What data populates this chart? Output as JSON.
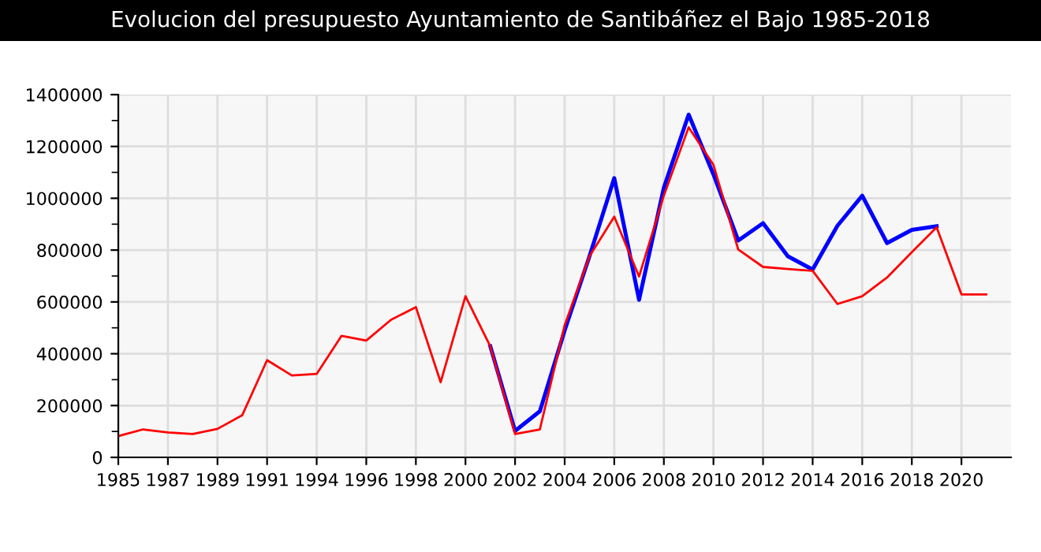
{
  "chart_data": {
    "type": "line",
    "title": "Evolucion del presupuesto Ayuntamiento de Santibáñez el Bajo 1985-2018",
    "categories": [
      "1985",
      null,
      "1987",
      null,
      "1989",
      null,
      "1991",
      null,
      "1994",
      null,
      "1996",
      null,
      "1998",
      null,
      "2000",
      null,
      "2002",
      null,
      "2004",
      null,
      "2006",
      null,
      "2008",
      null,
      "2010",
      null,
      "2012",
      null,
      "2014",
      null,
      "2016",
      null,
      "2018",
      null,
      "2020",
      null
    ],
    "series": [
      {
        "color": "#0000ff",
        "values": [
          null,
          null,
          null,
          null,
          null,
          null,
          null,
          null,
          null,
          null,
          null,
          null,
          null,
          null,
          null,
          429000,
          102000,
          178000,
          490000,
          776000,
          1078000,
          608000,
          1041000,
          1323000,
          1092000,
          837000,
          904000,
          776000,
          725000,
          894000,
          1010000,
          827000,
          878000,
          892000,
          null,
          null
        ]
      },
      {
        "color": "#ff0000",
        "values": [
          82000,
          108000,
          96000,
          90000,
          110000,
          163000,
          375000,
          316000,
          322000,
          469000,
          451000,
          531000,
          580000,
          290000,
          622000,
          429000,
          90000,
          108000,
          510000,
          776000,
          929000,
          698000,
          1010000,
          1274000,
          1129000,
          802000,
          735000,
          727000,
          720000,
          592000,
          622000,
          694000,
          792000,
          888000,
          629000,
          629000
        ]
      }
    ],
    "ylim": [
      0,
      1400000
    ],
    "yticks": [
      0,
      200000,
      400000,
      600000,
      800000,
      1000000,
      1200000,
      1400000
    ],
    "grid": true,
    "legend": false,
    "marker": "none",
    "line_style": "solid"
  }
}
